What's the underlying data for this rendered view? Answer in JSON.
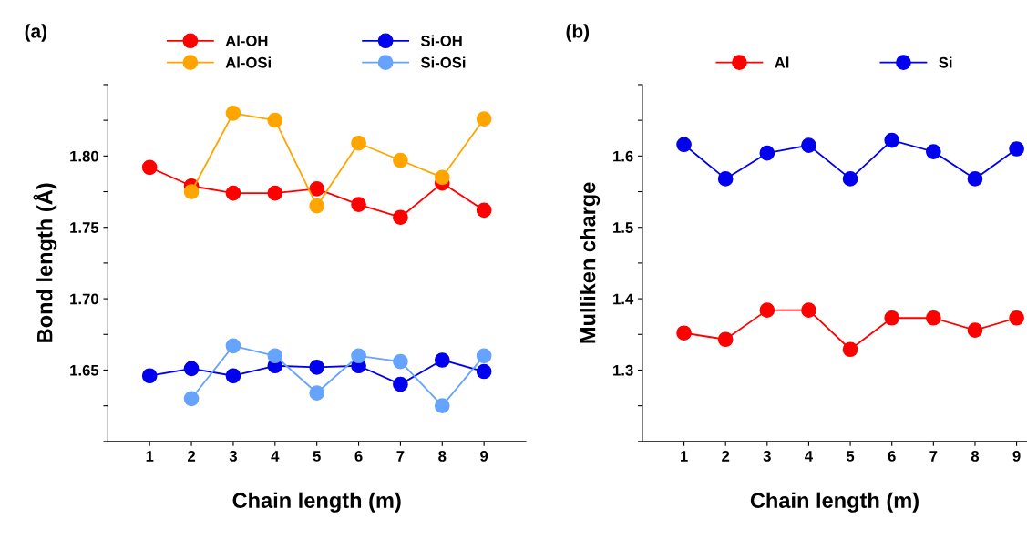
{
  "chart_data": [
    {
      "type": "line",
      "annotations": [
        "(a)"
      ],
      "xlabel": "Chain length (m)",
      "ylabel": "Bond length (Å)",
      "x": [
        1,
        2,
        3,
        4,
        5,
        6,
        7,
        8,
        9
      ],
      "xlim": [
        0,
        10
      ],
      "xticks": [
        1,
        2,
        3,
        4,
        5,
        6,
        7,
        8,
        9
      ],
      "ylim": [
        1.6,
        1.85
      ],
      "yticks": [
        {
          "value": 1.6,
          "label": null
        },
        {
          "value": 1.625,
          "label": null
        },
        1.65,
        {
          "value": 1.675,
          "label": null
        },
        "1.70",
        {
          "value": 1.725,
          "label": null
        },
        1.75,
        {
          "value": 1.775,
          "label": null
        },
        "1.80",
        {
          "value": 1.825,
          "label": null
        },
        {
          "value": 1.85,
          "label": null
        }
      ],
      "marker": "circle",
      "legend": "top",
      "grid": false,
      "series": [
        {
          "name": "Al-OH",
          "color": "#ff0000",
          "values": [
            1.792,
            1.779,
            1.774,
            1.774,
            1.777,
            1.766,
            1.757,
            1.781,
            1.762
          ]
        },
        {
          "name": "Si-OH",
          "color": "#0000ee",
          "values": [
            1.646,
            1.651,
            1.646,
            1.653,
            1.652,
            1.653,
            1.64,
            1.657,
            1.649
          ]
        },
        {
          "name": "Al-OSi",
          "color": "#ffa500",
          "values": [
            null,
            1.775,
            1.83,
            1.825,
            1.765,
            1.809,
            1.797,
            1.785,
            1.826
          ]
        },
        {
          "name": "Si-OSi",
          "color": "#66a3ff",
          "values": [
            null,
            1.63,
            1.667,
            1.66,
            1.634,
            1.66,
            1.656,
            1.625,
            1.66
          ]
        }
      ]
    },
    {
      "type": "line",
      "annotations": [
        "(b)"
      ],
      "xlabel": "Chain length (m)",
      "ylabel": "Mulliken charge",
      "x": [
        1,
        2,
        3,
        4,
        5,
        6,
        7,
        8,
        9
      ],
      "xlim": [
        0,
        9.25
      ],
      "xticks": [
        1,
        2,
        3,
        4,
        5,
        6,
        7,
        8,
        9
      ],
      "ylim": [
        1.2,
        1.7
      ],
      "yticks": [
        {
          "value": 1.2,
          "label": null
        },
        {
          "value": 1.25,
          "label": null
        },
        1.3,
        {
          "value": 1.35,
          "label": null
        },
        1.4,
        {
          "value": 1.45,
          "label": null
        },
        1.5,
        {
          "value": 1.55,
          "label": null
        },
        1.6,
        {
          "value": 1.65,
          "label": null
        },
        {
          "value": 1.7,
          "label": null
        }
      ],
      "marker": "circle",
      "legend": "top",
      "grid": false,
      "series": [
        {
          "name": "Al",
          "color": "#ff0000",
          "values": [
            1.352,
            1.343,
            1.384,
            1.384,
            1.329,
            1.373,
            1.373,
            1.356,
            1.373
          ]
        },
        {
          "name": "Si",
          "color": "#0000ee",
          "values": [
            1.616,
            1.568,
            1.604,
            1.615,
            1.568,
            1.622,
            1.606,
            1.568,
            1.61
          ]
        }
      ]
    }
  ]
}
